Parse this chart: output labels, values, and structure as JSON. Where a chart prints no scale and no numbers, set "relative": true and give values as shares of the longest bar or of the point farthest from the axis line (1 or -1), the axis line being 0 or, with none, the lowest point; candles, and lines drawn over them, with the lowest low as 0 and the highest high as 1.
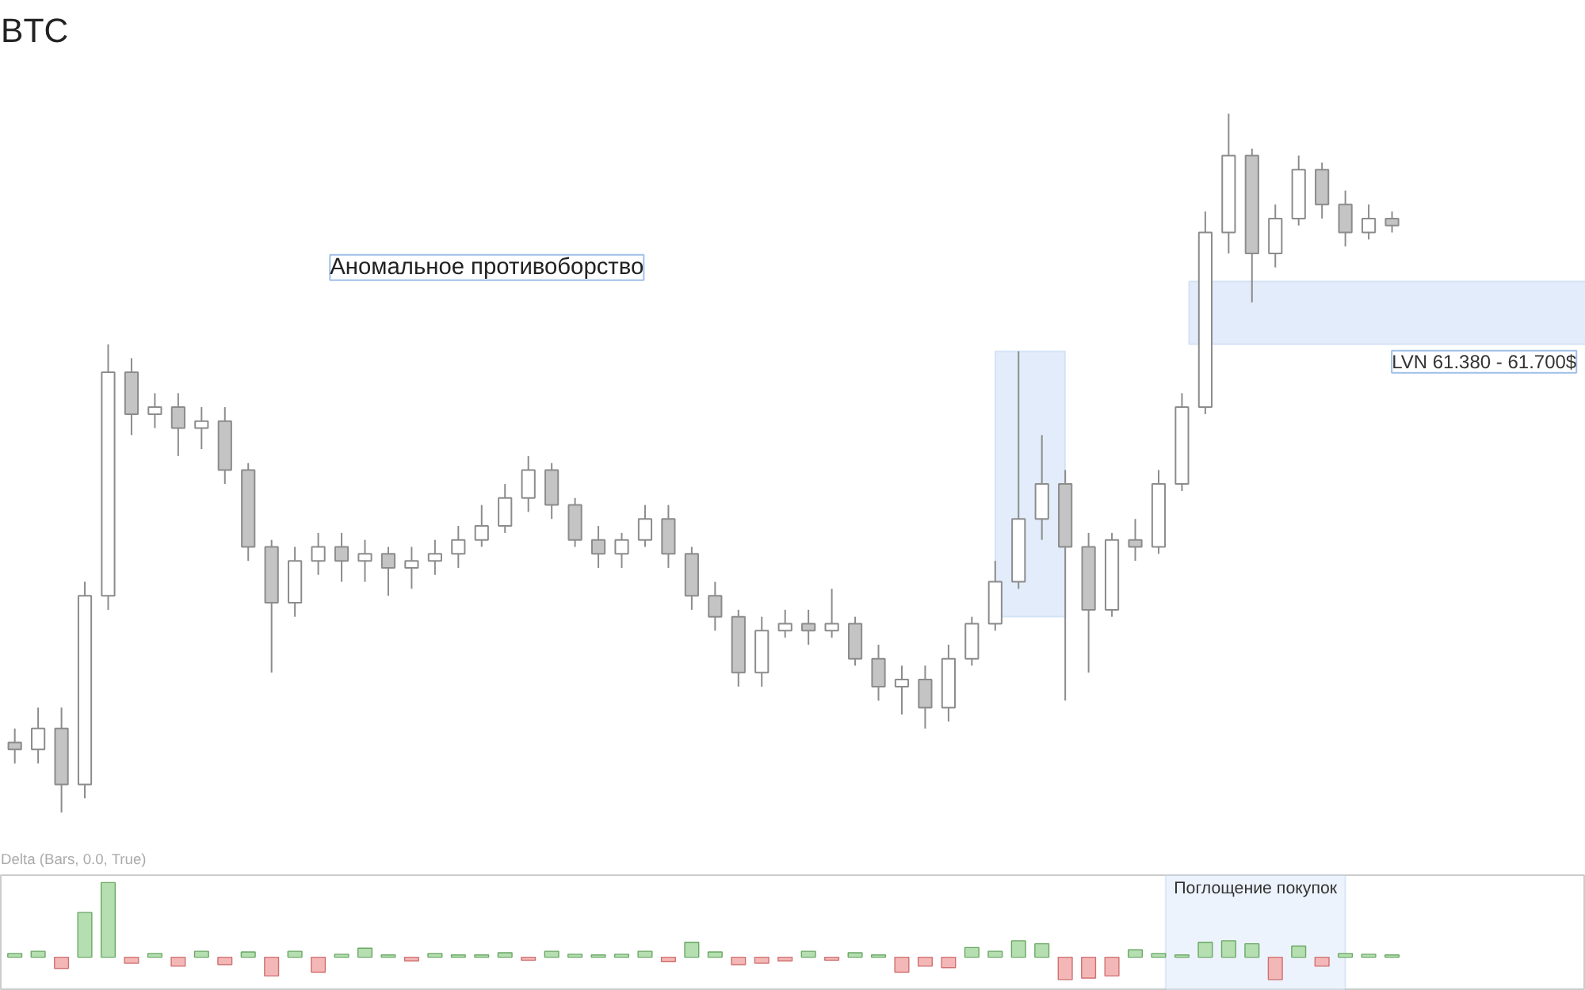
{
  "chart_data": [
    {
      "type": "candlestick",
      "title": "BTC",
      "relative": true,
      "categories": [
        null,
        null,
        null,
        null,
        null,
        null,
        null,
        null,
        null,
        null,
        null,
        null,
        null,
        null,
        null,
        null,
        null,
        null,
        null,
        null,
        null,
        null,
        null,
        null,
        null,
        null,
        null,
        null,
        null,
        null,
        null,
        null,
        null,
        null,
        null,
        null,
        null,
        null,
        null,
        null,
        null,
        null,
        null,
        null,
        null,
        null,
        null,
        null,
        null,
        null,
        null,
        null,
        null,
        null,
        null,
        null,
        null,
        null,
        null,
        null
      ],
      "ohlc": [
        [
          0.1,
          0.12,
          0.07,
          0.09
        ],
        [
          0.09,
          0.15,
          0.07,
          0.12
        ],
        [
          0.12,
          0.15,
          0.0,
          0.04
        ],
        [
          0.04,
          0.33,
          0.02,
          0.31
        ],
        [
          0.31,
          0.67,
          0.29,
          0.63
        ],
        [
          0.63,
          0.65,
          0.54,
          0.57
        ],
        [
          0.57,
          0.6,
          0.55,
          0.58
        ],
        [
          0.58,
          0.6,
          0.51,
          0.55
        ],
        [
          0.55,
          0.58,
          0.52,
          0.56
        ],
        [
          0.56,
          0.58,
          0.47,
          0.49
        ],
        [
          0.49,
          0.5,
          0.36,
          0.38
        ],
        [
          0.38,
          0.39,
          0.2,
          0.3
        ],
        [
          0.3,
          0.38,
          0.28,
          0.36
        ],
        [
          0.36,
          0.4,
          0.34,
          0.38
        ],
        [
          0.38,
          0.4,
          0.33,
          0.36
        ],
        [
          0.36,
          0.39,
          0.33,
          0.37
        ],
        [
          0.37,
          0.38,
          0.31,
          0.35
        ],
        [
          0.35,
          0.38,
          0.32,
          0.36
        ],
        [
          0.36,
          0.39,
          0.34,
          0.37
        ],
        [
          0.37,
          0.41,
          0.35,
          0.39
        ],
        [
          0.39,
          0.44,
          0.38,
          0.41
        ],
        [
          0.41,
          0.47,
          0.4,
          0.45
        ],
        [
          0.45,
          0.51,
          0.43,
          0.49
        ],
        [
          0.49,
          0.5,
          0.42,
          0.44
        ],
        [
          0.44,
          0.45,
          0.38,
          0.39
        ],
        [
          0.39,
          0.41,
          0.35,
          0.37
        ],
        [
          0.37,
          0.4,
          0.35,
          0.39
        ],
        [
          0.39,
          0.44,
          0.38,
          0.42
        ],
        [
          0.42,
          0.44,
          0.35,
          0.37
        ],
        [
          0.37,
          0.38,
          0.29,
          0.31
        ],
        [
          0.31,
          0.33,
          0.26,
          0.28
        ],
        [
          0.28,
          0.29,
          0.18,
          0.2
        ],
        [
          0.2,
          0.28,
          0.18,
          0.26
        ],
        [
          0.26,
          0.29,
          0.25,
          0.27
        ],
        [
          0.27,
          0.29,
          0.24,
          0.26
        ],
        [
          0.26,
          0.32,
          0.25,
          0.27
        ],
        [
          0.27,
          0.28,
          0.21,
          0.22
        ],
        [
          0.22,
          0.24,
          0.16,
          0.18
        ],
        [
          0.18,
          0.21,
          0.14,
          0.19
        ],
        [
          0.19,
          0.21,
          0.12,
          0.15
        ],
        [
          0.15,
          0.24,
          0.13,
          0.22
        ],
        [
          0.22,
          0.28,
          0.21,
          0.27
        ],
        [
          0.27,
          0.36,
          0.26,
          0.33
        ],
        [
          0.33,
          0.66,
          0.32,
          0.42
        ],
        [
          0.42,
          0.54,
          0.39,
          0.47
        ],
        [
          0.47,
          0.49,
          0.16,
          0.38
        ],
        [
          0.38,
          0.4,
          0.2,
          0.29
        ],
        [
          0.29,
          0.4,
          0.28,
          0.39
        ],
        [
          0.39,
          0.42,
          0.36,
          0.38
        ],
        [
          0.38,
          0.49,
          0.37,
          0.47
        ],
        [
          0.47,
          0.6,
          0.46,
          0.58
        ],
        [
          0.58,
          0.86,
          0.57,
          0.83
        ],
        [
          0.83,
          1.0,
          0.8,
          0.94
        ],
        [
          0.94,
          0.95,
          0.73,
          0.8
        ],
        [
          0.8,
          0.87,
          0.78,
          0.85
        ],
        [
          0.85,
          0.94,
          0.84,
          0.92
        ],
        [
          0.92,
          0.93,
          0.85,
          0.87
        ],
        [
          0.87,
          0.89,
          0.81,
          0.83
        ],
        [
          0.83,
          0.87,
          0.82,
          0.85
        ],
        [
          0.85,
          0.86,
          0.83,
          0.84
        ]
      ],
      "colors": [
        "#c4c4c4",
        "#ffffff",
        "#c4c4c4",
        "#ffffff",
        "#ffffff",
        "#c4c4c4",
        "#ffffff",
        "#c4c4c4",
        "#ffffff",
        "#c4c4c4",
        "#c4c4c4",
        "#c4c4c4",
        "#ffffff",
        "#ffffff",
        "#c4c4c4",
        "#ffffff",
        "#c4c4c4",
        "#ffffff",
        "#ffffff",
        "#ffffff",
        "#ffffff",
        "#ffffff",
        "#ffffff",
        "#c4c4c4",
        "#c4c4c4",
        "#c4c4c4",
        "#ffffff",
        "#ffffff",
        "#c4c4c4",
        "#c4c4c4",
        "#c4c4c4",
        "#c4c4c4",
        "#ffffff",
        "#ffffff",
        "#c4c4c4",
        "#ffffff",
        "#c4c4c4",
        "#c4c4c4",
        "#ffffff",
        "#c4c4c4",
        "#ffffff",
        "#ffffff",
        "#ffffff",
        "#ffffff",
        "#ffffff",
        "#c4c4c4",
        "#c4c4c4",
        "#ffffff",
        "#c4c4c4",
        "#ffffff",
        "#ffffff",
        "#ffffff",
        "#ffffff",
        "#c4c4c4",
        "#ffffff",
        "#ffffff",
        "#c4c4c4",
        "#c4c4c4",
        "#ffffff",
        "#c4c4c4"
      ],
      "bands": [
        {
          "axis": "y",
          "from": 0.67,
          "to": 0.76,
          "label": "LVN 61.380 - 61.700$",
          "color": "#cfe0f7"
        },
        {
          "axis": "y",
          "from": 0.28,
          "to": 0.66,
          "color": "#cfe0f7"
        }
      ],
      "annotations": [
        "Аномальное противоборство"
      ]
    },
    {
      "type": "bar",
      "title": "Delta (Bars, 0.0, True)",
      "relative": true,
      "categories": [
        null,
        null,
        null,
        null,
        null,
        null,
        null,
        null,
        null,
        null,
        null,
        null,
        null,
        null,
        null,
        null,
        null,
        null,
        null,
        null,
        null,
        null,
        null,
        null,
        null,
        null,
        null,
        null,
        null,
        null,
        null,
        null,
        null,
        null,
        null,
        null,
        null,
        null,
        null,
        null,
        null,
        null,
        null,
        null,
        null,
        null,
        null,
        null,
        null,
        null,
        null,
        null,
        null,
        null,
        null,
        null,
        null,
        null,
        null,
        null
      ],
      "values": [
        0.05,
        0.08,
        -0.15,
        0.6,
        1.0,
        -0.08,
        0.05,
        -0.12,
        0.08,
        -0.1,
        0.07,
        -0.25,
        0.08,
        -0.2,
        0.04,
        0.12,
        0.03,
        -0.05,
        0.05,
        0.03,
        0.03,
        0.06,
        -0.04,
        0.08,
        0.04,
        0.03,
        0.04,
        0.08,
        -0.06,
        0.2,
        0.07,
        -0.1,
        -0.08,
        -0.05,
        0.08,
        -0.04,
        0.06,
        0.03,
        -0.2,
        -0.12,
        -0.14,
        0.13,
        0.08,
        0.22,
        0.18,
        -0.3,
        -0.28,
        -0.25,
        0.1,
        0.05,
        0.03,
        0.2,
        0.22,
        0.18,
        -0.3,
        0.15,
        -0.12,
        0.05,
        0.04,
        0.03
      ],
      "colors": [
        "#b5dfb0",
        "#b5dfb0",
        "#f4b7b7",
        "#b5dfb0",
        "#b5dfb0",
        "#f4b7b7",
        "#b5dfb0",
        "#f4b7b7",
        "#b5dfb0",
        "#f4b7b7",
        "#b5dfb0",
        "#f4b7b7",
        "#b5dfb0",
        "#f4b7b7",
        "#b5dfb0",
        "#b5dfb0",
        "#b5dfb0",
        "#f4b7b7",
        "#b5dfb0",
        "#b5dfb0",
        "#b5dfb0",
        "#b5dfb0",
        "#f4b7b7",
        "#b5dfb0",
        "#b5dfb0",
        "#b5dfb0",
        "#b5dfb0",
        "#b5dfb0",
        "#f4b7b7",
        "#b5dfb0",
        "#b5dfb0",
        "#f4b7b7",
        "#f4b7b7",
        "#f4b7b7",
        "#b5dfb0",
        "#f4b7b7",
        "#b5dfb0",
        "#b5dfb0",
        "#f4b7b7",
        "#f4b7b7",
        "#f4b7b7",
        "#b5dfb0",
        "#b5dfb0",
        "#b5dfb0",
        "#b5dfb0",
        "#f4b7b7",
        "#f4b7b7",
        "#f4b7b7",
        "#b5dfb0",
        "#b5dfb0",
        "#b5dfb0",
        "#b5dfb0",
        "#b5dfb0",
        "#b5dfb0",
        "#f4b7b7",
        "#b5dfb0",
        "#f4b7b7",
        "#b5dfb0",
        "#b5dfb0",
        "#b5dfb0"
      ],
      "annotations": [
        "Поглощение покупок"
      ]
    }
  ]
}
